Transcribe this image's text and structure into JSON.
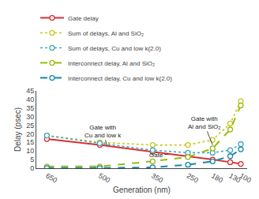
{
  "chart_data": {
    "type": "line",
    "x": [
      650,
      500,
      350,
      250,
      180,
      130,
      100
    ],
    "xlabel": "Generation (nm)",
    "ylabel": "Delay (psec)",
    "xlim": [
      680,
      82
    ],
    "xticks": [
      650,
      500,
      350,
      250,
      180,
      130,
      100
    ],
    "ylim": [
      0,
      45
    ],
    "yticks": [
      0,
      5,
      10,
      15,
      20,
      25,
      30,
      35,
      40,
      45
    ],
    "grid": false,
    "legend": "top",
    "series": [
      {
        "name": "Gate delay",
        "color": "#d93030",
        "line_style": "solid",
        "marker": "open circle",
        "values": [
          17.0,
          13.5,
          9.5,
          7.0,
          5.0,
          3.5,
          2.5
        ]
      },
      {
        "name": "Sum of delays, Al and SiO₂",
        "color": "#c8c820",
        "line_style": "dotted",
        "marker": "open circle",
        "values": [
          19.0,
          15.0,
          13.5,
          13.5,
          16.5,
          26.0,
          39.0
        ]
      },
      {
        "name": "Sum of delays, Cu and low k(2.0)",
        "color": "#40aabb",
        "line_style": "dotted",
        "marker": "open circle",
        "values": [
          19.0,
          14.5,
          10.5,
          9.0,
          9.0,
          10.5,
          14.0
        ]
      },
      {
        "name": "Interconnect delay, Al and SiO₂",
        "color": "#99bb10",
        "line_style": "dashed",
        "marker": "open circle",
        "values": [
          1.0,
          1.0,
          4.0,
          6.5,
          11.5,
          22.5,
          36.5
        ]
      },
      {
        "name": "Interconnect delay, Cu and low k(2.0)",
        "color": "#1888a8",
        "line_style": "dashed",
        "marker": "open circle",
        "values": [
          0.1,
          0.1,
          0.5,
          2.0,
          4.0,
          7.0,
          11.0
        ]
      }
    ],
    "annotations": [
      {
        "text": "Gate with\nCu and low k",
        "x": 480,
        "y": 13.2,
        "text_x": 490,
        "text_y": 21.5
      },
      {
        "text": "Gate with\nAl and SiO₂",
        "x": 180,
        "y": 13.5,
        "text_x": 205,
        "text_y": 26.5
      },
      {
        "text": "Gate",
        "x": 305,
        "y": 8.2,
        "text_x": 340,
        "text_y": 7.5
      }
    ]
  }
}
